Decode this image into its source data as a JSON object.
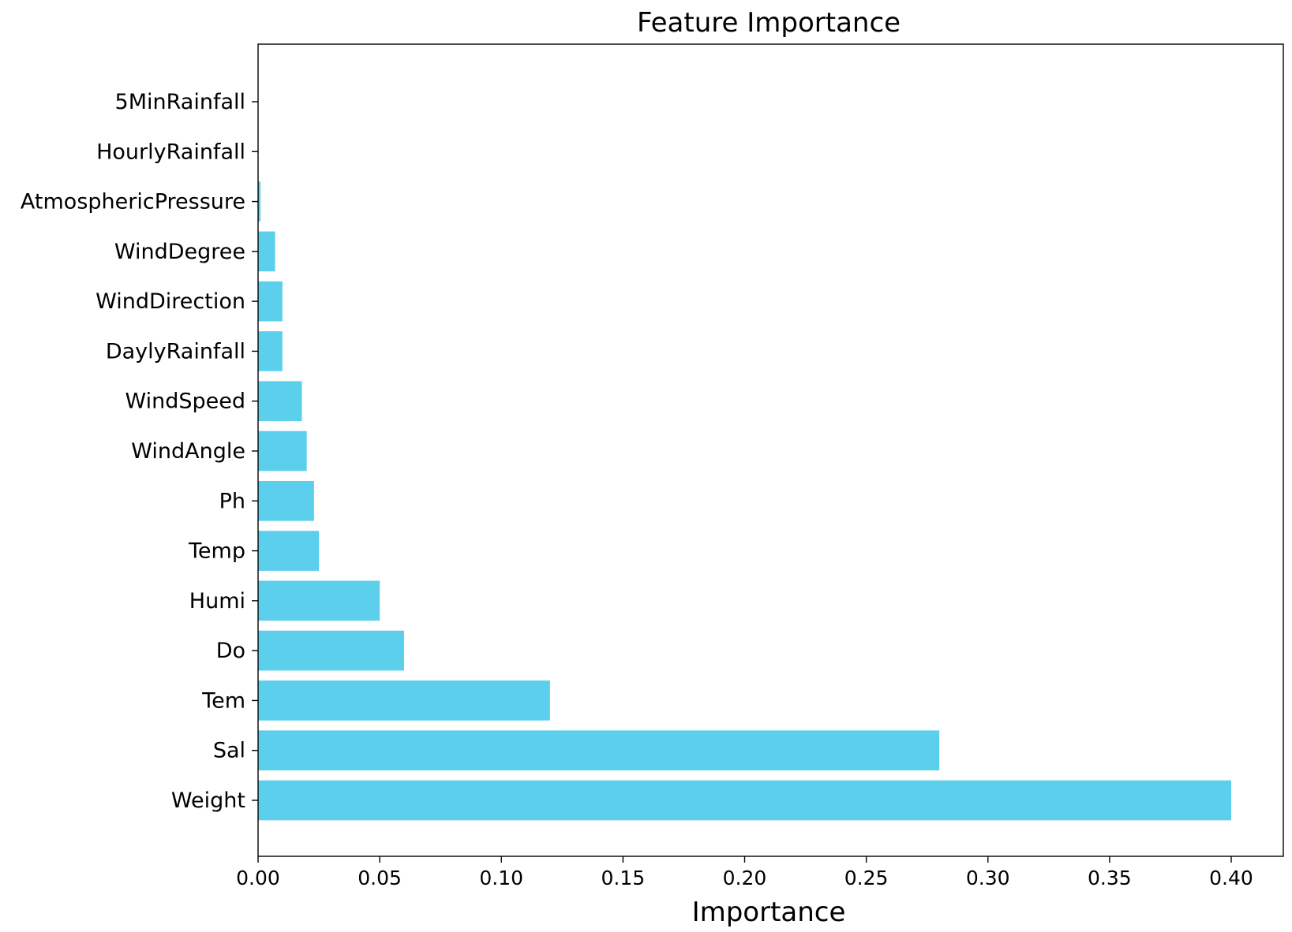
{
  "chart_data": {
    "type": "bar",
    "orientation": "horizontal",
    "title": "Feature Importance",
    "xlabel": "Importance",
    "ylabel": "",
    "xlim": [
      0,
      0.41
    ],
    "xticks": [
      "0.00",
      "0.05",
      "0.10",
      "0.15",
      "0.20",
      "0.25",
      "0.30",
      "0.35",
      "0.40"
    ],
    "bar_color": "#5bcfec",
    "grid": false,
    "legend": "none",
    "categories": [
      "Weight",
      "Sal",
      "Tem",
      "Do",
      "Humi",
      "Temp",
      "Ph",
      "WindAngle",
      "WindSpeed",
      "DaylyRainfall",
      "WindDirection",
      "WindDegree",
      "AtmosphericPressure",
      "HourlyRainfall",
      "5MinRainfall"
    ],
    "values": [
      0.4,
      0.28,
      0.12,
      0.06,
      0.05,
      0.025,
      0.023,
      0.02,
      0.018,
      0.01,
      0.01,
      0.007,
      0.001,
      0.0,
      0.0
    ]
  }
}
